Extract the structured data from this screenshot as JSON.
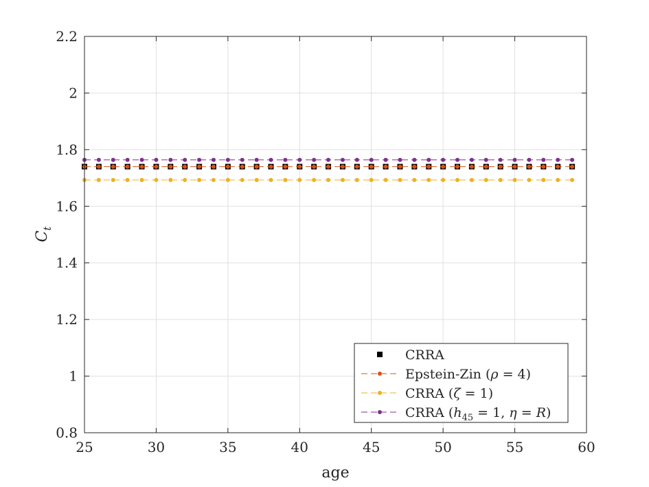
{
  "chart_data": {
    "type": "line",
    "xlabel": "age",
    "ylabel": "C",
    "ylabel_subscript": "t",
    "xlim": [
      25,
      60
    ],
    "ylim": [
      0.8,
      2.2
    ],
    "xticks": [
      "25",
      "30",
      "35",
      "40",
      "45",
      "50",
      "55",
      "60"
    ],
    "yticks": [
      "0.8",
      "1",
      "1.2",
      "1.4",
      "1.6",
      "1.8",
      "2",
      "2.2"
    ],
    "grid": true,
    "legend_position": "bottom-right",
    "x": [
      25,
      26,
      27,
      28,
      29,
      30,
      31,
      32,
      33,
      34,
      35,
      36,
      37,
      38,
      39,
      40,
      41,
      42,
      43,
      44,
      45,
      46,
      47,
      48,
      49,
      50,
      51,
      52,
      53,
      54,
      55,
      56,
      57,
      58,
      59
    ],
    "series": [
      {
        "name": "CRRA",
        "marker": "square",
        "line": "none",
        "color": "#000000",
        "y": 1.74
      },
      {
        "name": "Epstein-Zin (ρ = 4)",
        "marker": "dot",
        "line": "dashed",
        "color": "#D95319",
        "y": 1.74
      },
      {
        "name": "CRRA (ζ = 1)",
        "marker": "dot",
        "line": "dashed",
        "color": "#EDB120",
        "y": 1.693
      },
      {
        "name": "CRRA (h₄₅ = 1, η = R)",
        "marker": "dot",
        "line": "dashed",
        "color": "#7E2F8E",
        "y": 1.764
      }
    ]
  }
}
